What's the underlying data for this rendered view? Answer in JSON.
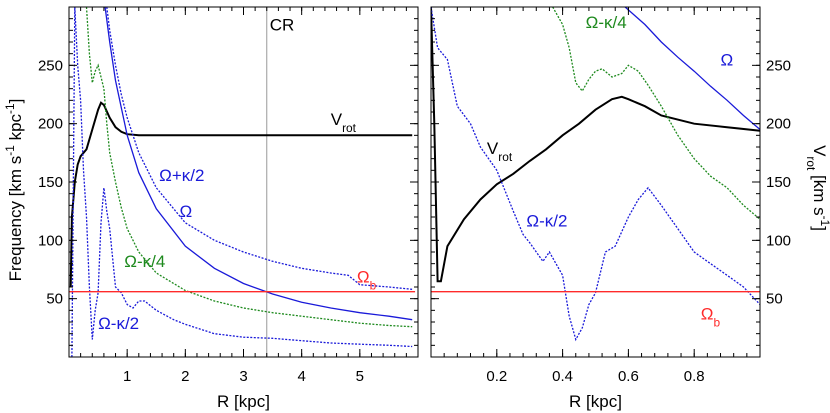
{
  "chart_data": [
    {
      "type": "line",
      "panel": "left",
      "xlabel": "R [kpc]",
      "ylabel": "Frequency [km s-1 kpc-1]",
      "ylabel_parts": [
        "Frequency [km s",
        "-1",
        " kpc",
        "-1",
        "]"
      ],
      "xlim": [
        0,
        6
      ],
      "ylim": [
        0,
        300
      ],
      "xticks": [
        1,
        2,
        3,
        4,
        5
      ],
      "yticks": [
        50,
        100,
        150,
        200,
        250
      ],
      "annotations": [
        {
          "text": "CR",
          "x": 3.4,
          "y": 280,
          "color": "#000000"
        }
      ],
      "vlines": [
        {
          "x": 3.4,
          "color": "#999999"
        }
      ],
      "hlines": [
        {
          "y": 56,
          "color": "#ff2a2a"
        }
      ],
      "series": [
        {
          "name": "Vrot",
          "label_parts": [
            "V",
            "rot"
          ],
          "color": "#000000",
          "style": "solid",
          "label_x": 4.5,
          "label_y": 199,
          "x": [
            0.03,
            0.05,
            0.1,
            0.15,
            0.2,
            0.3,
            0.4,
            0.5,
            0.55,
            0.6,
            0.7,
            0.8,
            0.9,
            1.0,
            1.2,
            1.5,
            2,
            3,
            4,
            5,
            5.9
          ],
          "y": [
            60,
            120,
            150,
            165,
            172,
            178,
            195,
            212,
            218,
            216,
            205,
            197,
            193,
            191,
            190,
            190,
            190,
            190,
            190,
            190,
            190
          ]
        },
        {
          "name": "Ω+κ/2",
          "color": "#1a1ad9",
          "style": "dotted",
          "label_x": 1.55,
          "label_y": 151,
          "x": [
            0.65,
            0.7,
            0.8,
            0.9,
            1.0,
            1.2,
            1.5,
            2,
            2.5,
            3,
            3.5,
            4,
            4.5,
            4.8,
            5,
            5.5,
            5.9
          ],
          "y": [
            300,
            280,
            250,
            225,
            205,
            175,
            145,
            115,
            100,
            90,
            82,
            76,
            72,
            70,
            62,
            60,
            58
          ]
        },
        {
          "name": "Ω",
          "color": "#1a1ad9",
          "style": "solid",
          "label_x": 1.9,
          "label_y": 120,
          "x": [
            0.62,
            0.7,
            0.8,
            1.0,
            1.2,
            1.5,
            2,
            2.5,
            3,
            3.5,
            4,
            4.5,
            5,
            5.5,
            5.9
          ],
          "y": [
            300,
            270,
            237,
            190,
            158,
            127,
            95,
            76,
            63,
            54,
            47,
            42,
            38,
            35,
            32
          ]
        },
        {
          "name": "Ω-κ/4",
          "color": "#1e8a1e",
          "style": "dotted",
          "label_x": 0.95,
          "label_y": 77,
          "x": [
            0.3,
            0.35,
            0.4,
            0.45,
            0.5,
            0.55,
            0.6,
            0.65,
            0.7,
            0.8,
            0.9,
            1.0,
            1.2,
            1.5,
            2,
            2.5,
            3,
            3.5,
            4,
            4.5,
            5,
            5.5,
            5.9
          ],
          "y": [
            300,
            260,
            235,
            245,
            250,
            240,
            230,
            200,
            175,
            150,
            128,
            110,
            90,
            72,
            57,
            48,
            42,
            38,
            35,
            32,
            29,
            27,
            26
          ]
        },
        {
          "name": "Ω-κ/2",
          "color": "#1a1ad9",
          "style": "dotted",
          "label_x": 0.5,
          "label_y": 24,
          "x": [
            0.05,
            0.1,
            0.15,
            0.2,
            0.25,
            0.3,
            0.35,
            0.4,
            0.45,
            0.5,
            0.55,
            0.6,
            0.65,
            0.7,
            0.75,
            0.8,
            0.9,
            1.0,
            1.1,
            1.2,
            1.3,
            1.5,
            1.8,
            2,
            2.5,
            3,
            3.5,
            4,
            4.5,
            5,
            5.5,
            5.9
          ],
          "y": [
            0,
            300,
            250,
            220,
            160,
            120,
            60,
            15,
            40,
            55,
            115,
            145,
            125,
            110,
            85,
            60,
            55,
            45,
            42,
            48,
            48,
            40,
            32,
            28,
            20,
            17,
            16,
            14,
            12,
            11,
            10,
            9
          ]
        },
        {
          "name": "Ωb",
          "color": "#ff2a2a",
          "style": "solid",
          "label_x": 4.95,
          "label_y": 64,
          "x": [
            0,
            5.95
          ],
          "y": [
            56,
            56
          ]
        }
      ]
    },
    {
      "type": "line",
      "panel": "right",
      "xlabel": "R [kpc]",
      "ylabel": "Vrot [km s-1]",
      "ylabel_parts": [
        "V",
        "rot",
        " [km s",
        "-1",
        "]"
      ],
      "xlim": [
        0,
        1
      ],
      "ylim": [
        0,
        300
      ],
      "xticks": [
        0.2,
        0.4,
        0.6,
        0.8
      ],
      "xtick_labels": [
        "0.2",
        "0.4",
        "0.6",
        "0.8"
      ],
      "yticks": [
        50,
        100,
        150,
        200,
        250
      ],
      "hlines": [
        {
          "y": 56,
          "color": "#ff2a2a"
        }
      ],
      "series": [
        {
          "name": "Vrot",
          "label_parts": [
            "V",
            "rot"
          ],
          "color": "#000000",
          "style": "solid",
          "label_x": 0.17,
          "label_y": 174,
          "x": [
            0.0,
            0.01,
            0.02,
            0.03,
            0.05,
            0.1,
            0.15,
            0.2,
            0.25,
            0.3,
            0.35,
            0.4,
            0.45,
            0.5,
            0.55,
            0.58,
            0.6,
            0.65,
            0.7,
            0.8,
            0.9,
            1.0
          ],
          "y": [
            300,
            200,
            65,
            65,
            95,
            118,
            135,
            148,
            157,
            168,
            178,
            190,
            200,
            212,
            221,
            223,
            221,
            215,
            207,
            200,
            197,
            194
          ]
        },
        {
          "name": "Ω",
          "color": "#1a1ad9",
          "style": "solid",
          "label_x": 0.88,
          "label_y": 250,
          "x": [
            0.59,
            0.65,
            0.7,
            0.75,
            0.8,
            0.85,
            0.9,
            0.95,
            1.0
          ],
          "y": [
            300,
            285,
            270,
            257,
            245,
            232,
            220,
            207,
            195
          ]
        },
        {
          "name": "Ω-κ/4",
          "color": "#1e8a1e",
          "style": "dotted",
          "label_x": 0.47,
          "label_y": 282,
          "x": [
            0.37,
            0.4,
            0.42,
            0.44,
            0.46,
            0.48,
            0.5,
            0.52,
            0.55,
            0.58,
            0.6,
            0.63,
            0.66,
            0.7,
            0.75,
            0.8,
            0.85,
            0.9,
            0.95,
            1.0
          ],
          "y": [
            300,
            285,
            265,
            235,
            228,
            238,
            245,
            247,
            240,
            243,
            250,
            245,
            233,
            215,
            190,
            170,
            155,
            145,
            130,
            118
          ]
        },
        {
          "name": "Ω-κ/2",
          "color": "#1a1ad9",
          "style": "dotted",
          "label_x": 0.29,
          "label_y": 112,
          "x": [
            0.0,
            0.02,
            0.05,
            0.08,
            0.12,
            0.15,
            0.2,
            0.25,
            0.28,
            0.3,
            0.32,
            0.34,
            0.36,
            0.38,
            0.4,
            0.42,
            0.44,
            0.46,
            0.48,
            0.5,
            0.53,
            0.56,
            0.6,
            0.63,
            0.66,
            0.7,
            0.75,
            0.8,
            0.85,
            0.9,
            0.95,
            1.0
          ],
          "y": [
            300,
            265,
            255,
            215,
            200,
            180,
            160,
            125,
            105,
            98,
            90,
            82,
            90,
            80,
            70,
            35,
            15,
            25,
            45,
            55,
            90,
            95,
            120,
            135,
            145,
            130,
            110,
            90,
            80,
            70,
            60,
            45
          ]
        },
        {
          "name": "Ωb",
          "color": "#ff2a2a",
          "style": "solid",
          "label_x": 0.82,
          "label_y": 32,
          "x": [
            0,
            1
          ],
          "y": [
            56,
            56
          ]
        }
      ]
    }
  ]
}
